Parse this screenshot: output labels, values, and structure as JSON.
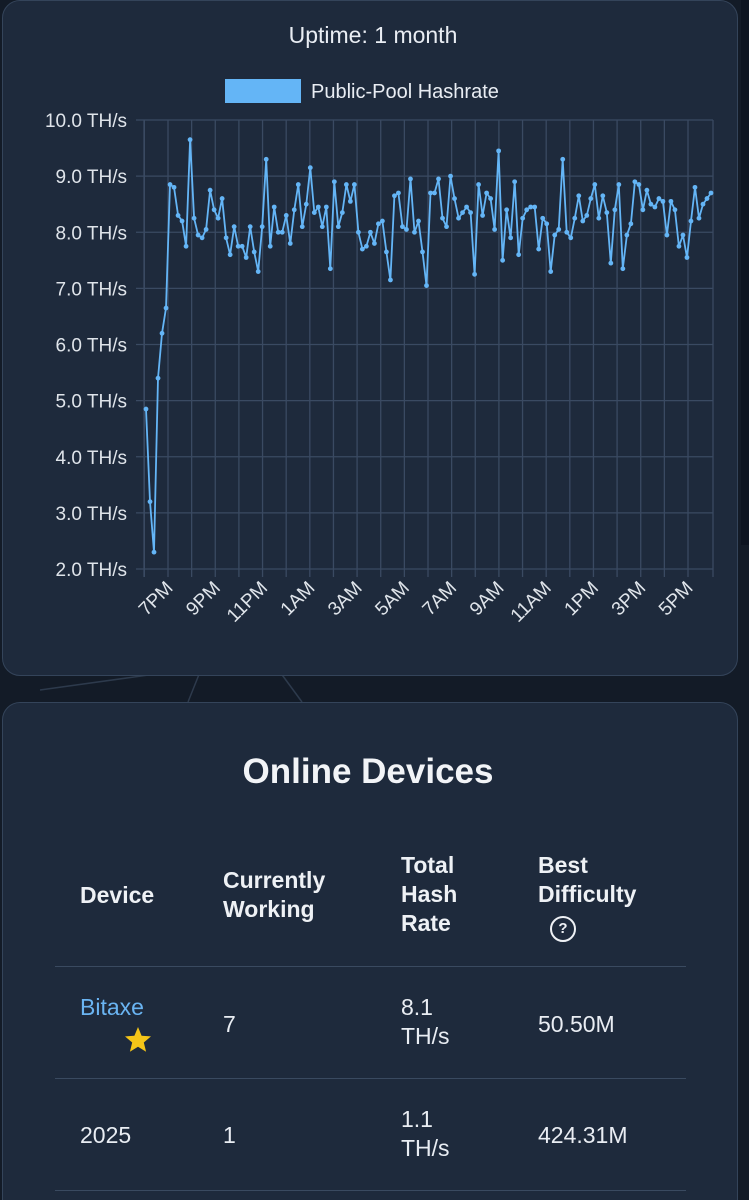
{
  "chart_card": {
    "title": "Uptime: 1 month",
    "legend_label": "Public-Pool Hashrate",
    "legend_color": "#64b5f6"
  },
  "chart_data": {
    "type": "line",
    "title": "Uptime: 1 month",
    "series": [
      {
        "name": "Public-Pool Hashrate",
        "unit": "TH/s",
        "color": "#64b5f6",
        "values": [
          4.85,
          3.2,
          2.3,
          5.4,
          6.2,
          6.65,
          8.85,
          8.8,
          8.3,
          8.2,
          7.75,
          9.65,
          8.25,
          7.95,
          7.9,
          8.05,
          8.75,
          8.4,
          8.25,
          8.6,
          7.9,
          7.6,
          8.1,
          7.75,
          7.75,
          7.55,
          8.1,
          7.65,
          7.3,
          8.1,
          9.3,
          7.75,
          8.45,
          8.0,
          8.0,
          8.3,
          7.8,
          8.4,
          8.85,
          8.1,
          8.5,
          9.15,
          8.35,
          8.45,
          8.1,
          8.45,
          7.35,
          8.9,
          8.1,
          8.35,
          8.85,
          8.55,
          8.85,
          8.0,
          7.7,
          7.75,
          8.0,
          7.8,
          8.15,
          8.2,
          7.65,
          7.15,
          8.65,
          8.7,
          8.1,
          8.05,
          8.95,
          8.0,
          8.2,
          7.65,
          7.05,
          8.7,
          8.7,
          8.95,
          8.25,
          8.1,
          9.0,
          8.6,
          8.25,
          8.35,
          8.45,
          8.35,
          7.25,
          8.85,
          8.3,
          8.7,
          8.6,
          8.05,
          9.45,
          7.5,
          8.4,
          7.9,
          8.9,
          7.6,
          8.25,
          8.4,
          8.45,
          8.45,
          7.7,
          8.25,
          8.15,
          7.3,
          7.95,
          8.05,
          9.3,
          8.0,
          7.9,
          8.25,
          8.65,
          8.2,
          8.3,
          8.6,
          8.85,
          8.25,
          8.65,
          8.35,
          7.45,
          8.4,
          8.85,
          7.35,
          7.95,
          8.15,
          8.9,
          8.85,
          8.4,
          8.75,
          8.5,
          8.45,
          8.6,
          8.55,
          7.95,
          8.55,
          8.4,
          7.75,
          7.95,
          7.55,
          8.2,
          8.8,
          8.25,
          8.5,
          8.6,
          8.7
        ]
      }
    ],
    "x_tick_labels": [
      "7PM",
      "9PM",
      "11PM",
      "1AM",
      "3AM",
      "5AM",
      "7AM",
      "9AM",
      "11AM",
      "1PM",
      "3PM",
      "5PM"
    ],
    "y_tick_labels": [
      "10.0 TH/s",
      "9.0 TH/s",
      "8.0 TH/s",
      "7.0 TH/s",
      "6.0 TH/s",
      "5.0 TH/s",
      "4.0 TH/s",
      "3.0 TH/s",
      "2.0 TH/s"
    ],
    "ylim": [
      2.0,
      10.0
    ],
    "grid": true,
    "legend_position": "top-center"
  },
  "devices": {
    "title": "Online Devices",
    "columns": {
      "device": "Device",
      "working_line1": "Currently",
      "working_line2": "Working",
      "hash_line1": "Total",
      "hash_line2": "Hash",
      "hash_line3": "Rate",
      "diff_line1": "Best",
      "diff_line2": "Difficulty",
      "help_glyph": "?"
    },
    "rows": [
      {
        "device": "Bitaxe",
        "working": "7",
        "hash_value": "8.1",
        "hash_unit": "TH/s",
        "best_difficulty": "50.50M",
        "icon": "star-icon",
        "icon_color": "#f5c518"
      },
      {
        "device": "2025",
        "working": "1",
        "hash_value": "1.1",
        "hash_unit": "TH/s",
        "best_difficulty": "424.31M"
      }
    ]
  }
}
